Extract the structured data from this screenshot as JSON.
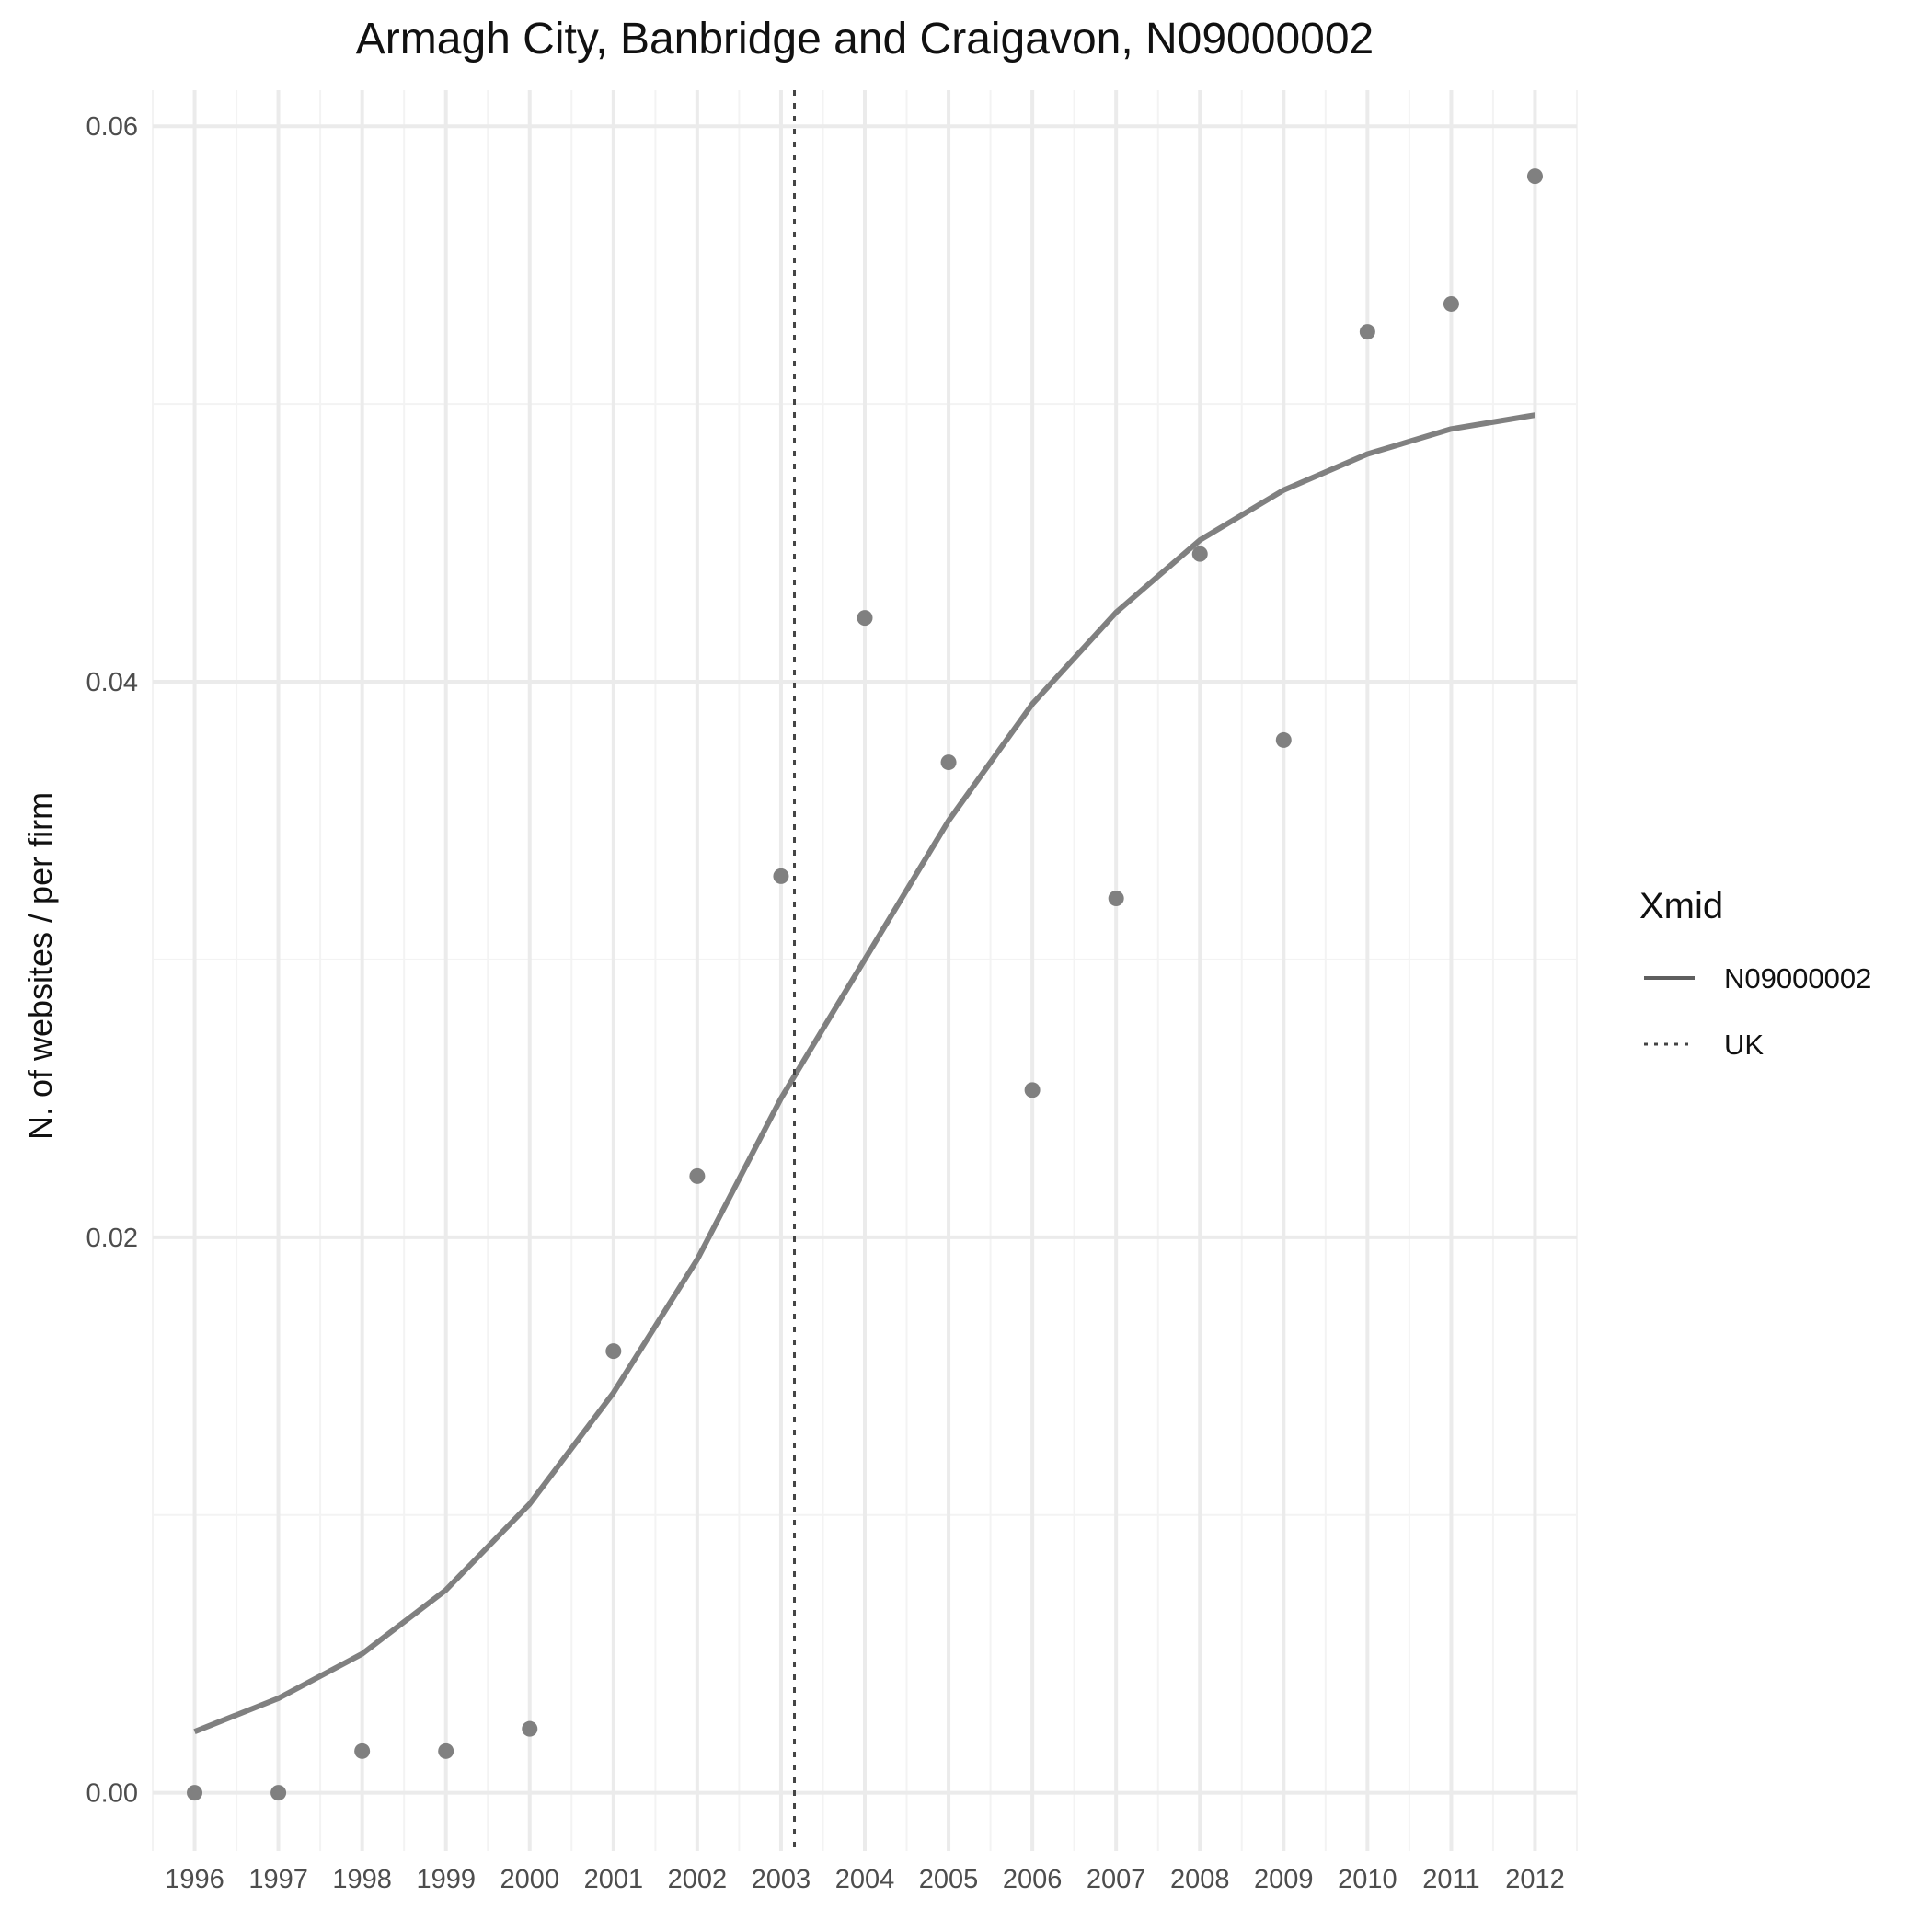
{
  "chart_data": {
    "type": "scatter",
    "title": "Armagh City, Banbridge and Craigavon, N09000002",
    "xlabel": "",
    "ylabel": "N. of websites / per firm",
    "x_ticks": [
      "1996",
      "1997",
      "1998",
      "1999",
      "2000",
      "2001",
      "2002",
      "2003",
      "2004",
      "2005",
      "2006",
      "2007",
      "2008",
      "2009",
      "2010",
      "2011",
      "2012"
    ],
    "y_ticks": [
      "0.00",
      "0.02",
      "0.04",
      "0.06"
    ],
    "xlim": [
      1995.5,
      2012.5
    ],
    "ylim": [
      -0.0021,
      0.0613
    ],
    "grid": true,
    "legend": {
      "title": "Xmid",
      "position": "right",
      "entries": [
        {
          "label": "N09000002",
          "style": "solid"
        },
        {
          "label": "UK",
          "style": "dotted"
        }
      ]
    },
    "points": {
      "x": [
        1996,
        1997,
        1998,
        1999,
        2000,
        2001,
        2002,
        2003,
        2004,
        2005,
        2006,
        2007,
        2008,
        2009,
        2010,
        2011,
        2012
      ],
      "y": [
        0.0,
        0.0,
        0.0015,
        0.0015,
        0.0023,
        0.0159,
        0.0222,
        0.033,
        0.0423,
        0.0371,
        0.0253,
        0.0322,
        0.0446,
        0.0379,
        0.0526,
        0.0536,
        0.0582
      ]
    },
    "series": [
      {
        "name": "N09000002",
        "x": [
          1996,
          1997,
          1998,
          1999,
          2000,
          2001,
          2002,
          2003,
          2004,
          2005,
          2006,
          2007,
          2008,
          2009,
          2010,
          2011,
          2012
        ],
        "y": [
          0.0022,
          0.0034,
          0.005,
          0.0073,
          0.0104,
          0.0144,
          0.0192,
          0.025,
          0.03,
          0.035,
          0.0392,
          0.0425,
          0.0451,
          0.0469,
          0.0482,
          0.0491,
          0.0496
        ]
      }
    ],
    "vline": {
      "name": "UK",
      "x": 2003.16
    },
    "colors": {
      "points": "#808080",
      "line": "#808080",
      "vline": "#444444",
      "grid_major": "#ebebeb",
      "grid_minor": "#f3f3f3",
      "legend_line": "#5f5f5f"
    }
  }
}
